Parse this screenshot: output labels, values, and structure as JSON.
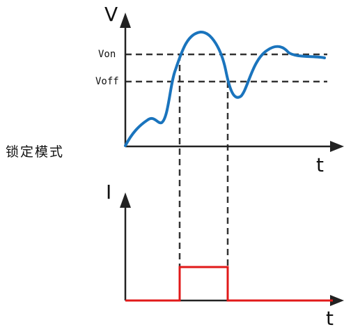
{
  "mode_label": "锁定模式",
  "voltage_plot": {
    "y_axis_label": "V",
    "x_axis_label": "t",
    "threshold_on_label": "Von",
    "threshold_off_label": "Voff"
  },
  "current_plot": {
    "y_axis_label": "I",
    "x_axis_label": "t"
  },
  "colors": {
    "axis": "#222222",
    "voltage_curve": "#1a74bd",
    "threshold_lines": "#333333",
    "current_trace": "#e11919"
  }
}
